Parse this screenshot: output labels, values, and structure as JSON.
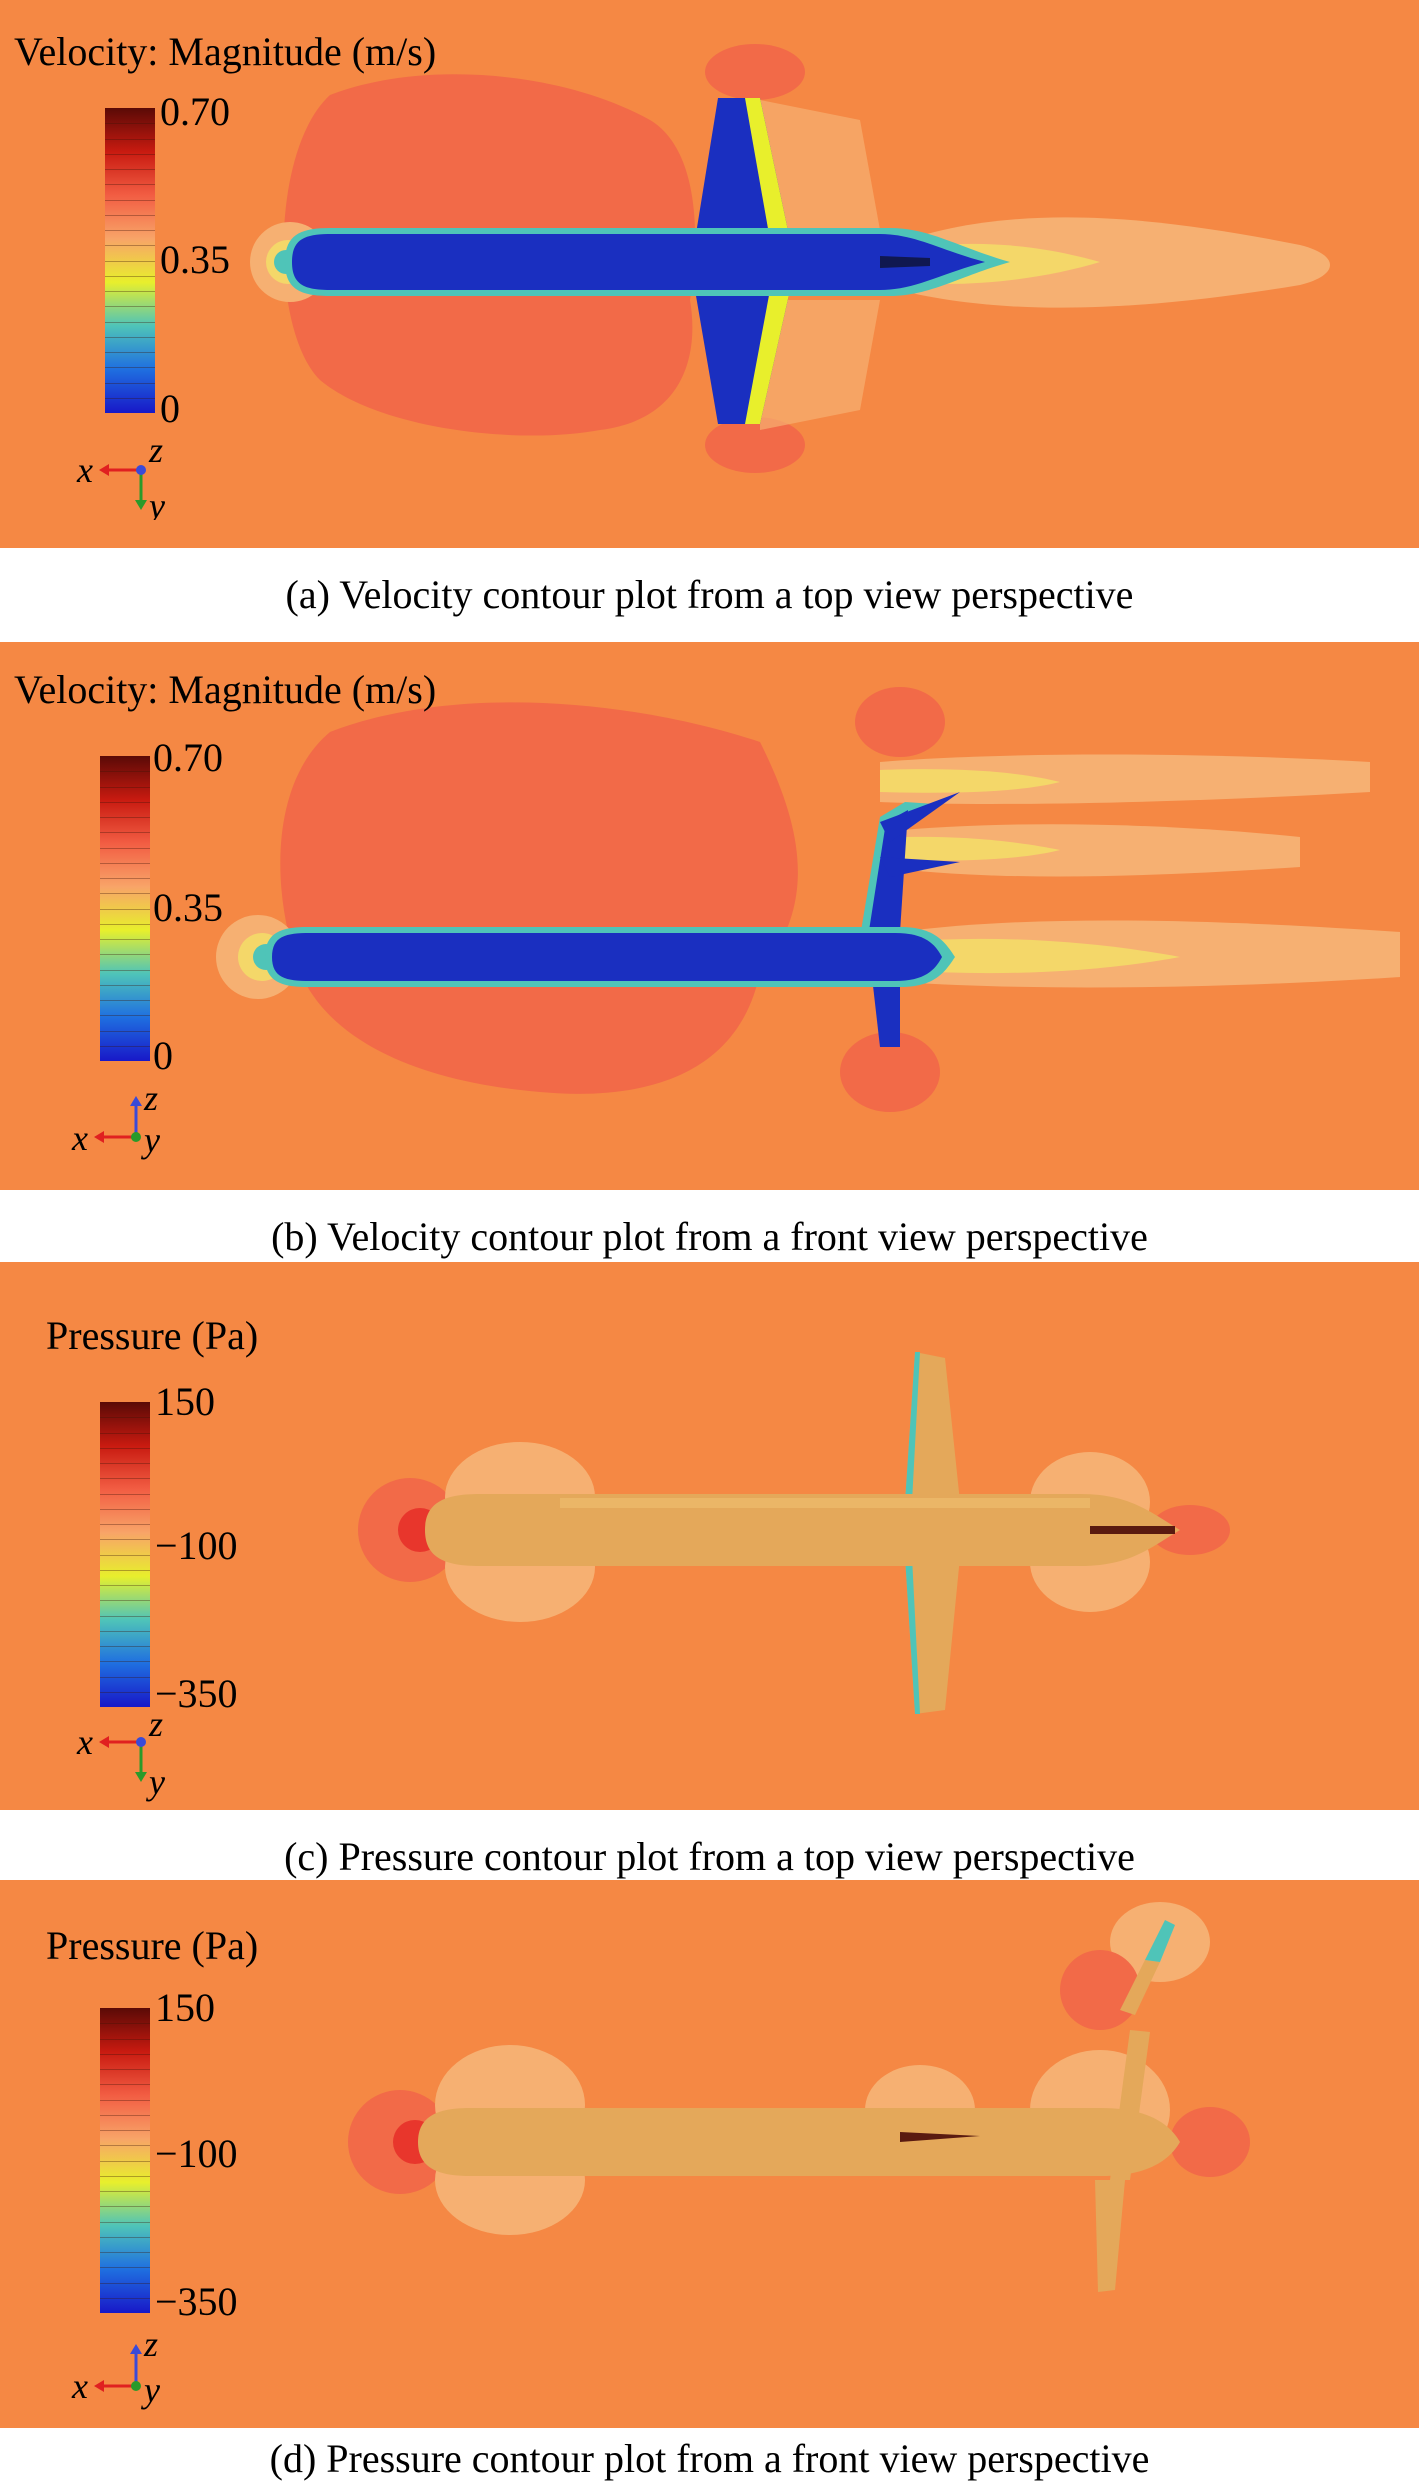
{
  "colors": {
    "background": "#f58844",
    "far_field": "#f58844",
    "hull_low_velocity": "#1a2fc0",
    "hull_pressure": "#e4a85a",
    "stagnation": "#e8362c"
  },
  "colorbar_gradient": [
    "#5a0a06",
    "#c81a10",
    "#f25d43",
    "#f8a468",
    "#e8ef2c",
    "#4fc4b8",
    "#1f6fe0",
    "#1818c8"
  ],
  "panels": [
    {
      "legend_title": "Velocity: Magnitude (m/s)",
      "tick_max": "0.70",
      "tick_mid": "0.35",
      "tick_min": "0",
      "axes": {
        "horizontal": "x",
        "vertical": "y",
        "center": "z"
      },
      "caption": "(a) Velocity contour plot from a top view perspective"
    },
    {
      "legend_title": "Velocity: Magnitude (m/s)",
      "tick_max": "0.70",
      "tick_mid": "0.35",
      "tick_min": "0",
      "axes": {
        "horizontal": "x",
        "vertical": "z",
        "center": "y"
      },
      "caption": "(b) Velocity contour plot from a front view perspective"
    },
    {
      "legend_title": "Pressure (Pa)",
      "tick_max": "150",
      "tick_mid": "−100",
      "tick_min": "−350",
      "axes": {
        "horizontal": "x",
        "vertical": "y",
        "center": "z"
      },
      "caption": "(c) Pressure contour plot from a top view perspective"
    },
    {
      "legend_title": "Pressure (Pa)",
      "tick_max": "150",
      "tick_mid": "−100",
      "tick_min": "−350",
      "axes": {
        "horizontal": "x",
        "vertical": "z",
        "center": "y"
      },
      "caption": "(d) Pressure contour plot from a front view perspective"
    }
  ]
}
